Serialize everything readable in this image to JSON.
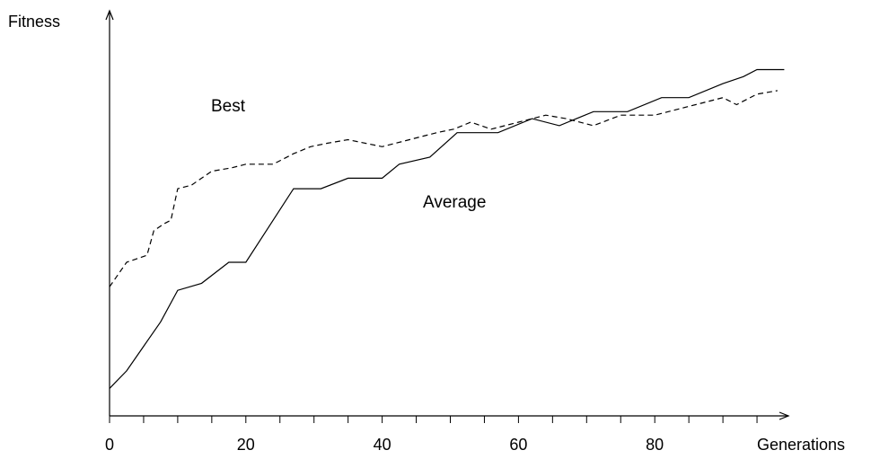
{
  "chart_data": {
    "type": "line",
    "title": "",
    "xlabel": "Generations",
    "ylabel": "Fitness",
    "xlim": [
      0,
      100
    ],
    "ylim": [
      0,
      1
    ],
    "xticks": [
      "0",
      "20",
      "40",
      "60",
      "80"
    ],
    "grid": false,
    "series": [
      {
        "name": "Best",
        "style": "dashed",
        "x": [
          0,
          2.5,
          4,
          5.5,
          6.5,
          8,
          9,
          10,
          12,
          13.5,
          15,
          18,
          20,
          24,
          27,
          29.5,
          32,
          35,
          40,
          44,
          48,
          50.5,
          53,
          56,
          60,
          64,
          67,
          71,
          75,
          80,
          84,
          90,
          92,
          95,
          98
        ],
        "values": [
          0.33,
          0.4,
          0.41,
          0.42,
          0.49,
          0.51,
          0.52,
          0.61,
          0.62,
          0.64,
          0.66,
          0.67,
          0.68,
          0.68,
          0.71,
          0.73,
          0.74,
          0.75,
          0.73,
          0.75,
          0.77,
          0.78,
          0.8,
          0.78,
          0.8,
          0.82,
          0.81,
          0.79,
          0.82,
          0.82,
          0.84,
          0.87,
          0.85,
          0.88,
          0.89
        ]
      },
      {
        "name": "Average",
        "style": "solid",
        "x": [
          0,
          2.5,
          5,
          7.5,
          10,
          13.5,
          17.5,
          20,
          27,
          31,
          35,
          40,
          42.5,
          47,
          51,
          57,
          62,
          66,
          71,
          76,
          81,
          85,
          90,
          93,
          95,
          99
        ],
        "values": [
          0.04,
          0.09,
          0.16,
          0.23,
          0.32,
          0.34,
          0.4,
          0.4,
          0.61,
          0.61,
          0.64,
          0.64,
          0.68,
          0.7,
          0.77,
          0.77,
          0.81,
          0.79,
          0.83,
          0.83,
          0.87,
          0.87,
          0.91,
          0.93,
          0.95,
          0.95
        ]
      }
    ],
    "annotations": [
      {
        "text": "Best",
        "series": "Best"
      },
      {
        "text": "Average",
        "series": "Average"
      }
    ]
  }
}
